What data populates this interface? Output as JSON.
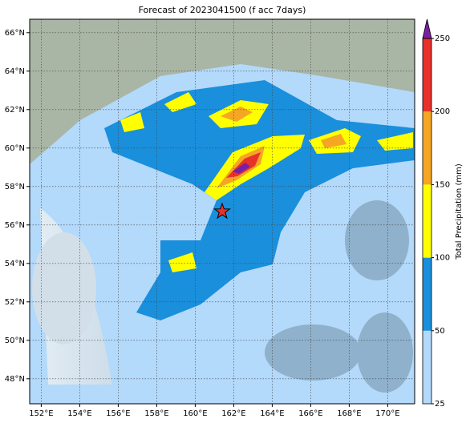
{
  "chart_data": {
    "type": "map",
    "title": "Forecast of 2023041500 (f acc 7days)",
    "xlim": [
      151.4,
      171.4
    ],
    "ylim": [
      46.7,
      66.7
    ],
    "xticks": [
      {
        "value": 152,
        "label": "152°E"
      },
      {
        "value": 154,
        "label": "154°E"
      },
      {
        "value": 156,
        "label": "156°E"
      },
      {
        "value": 158,
        "label": "158°E"
      },
      {
        "value": 160,
        "label": "160°E"
      },
      {
        "value": 162,
        "label": "162°E"
      },
      {
        "value": 164,
        "label": "164°E"
      },
      {
        "value": 166,
        "label": "166°E"
      },
      {
        "value": 168,
        "label": "168°E"
      },
      {
        "value": 170,
        "label": "170°E"
      }
    ],
    "yticks": [
      {
        "value": 48,
        "label": "48°N"
      },
      {
        "value": 50,
        "label": "50°N"
      },
      {
        "value": 52,
        "label": "52°N"
      },
      {
        "value": 54,
        "label": "54°N"
      },
      {
        "value": 56,
        "label": "56°N"
      },
      {
        "value": 58,
        "label": "58°N"
      },
      {
        "value": 60,
        "label": "60°N"
      },
      {
        "value": 62,
        "label": "62°N"
      },
      {
        "value": 64,
        "label": "64°N"
      },
      {
        "value": 66,
        "label": "66°N"
      }
    ],
    "grid": true,
    "marker": {
      "lon": 161.4,
      "lat": 56.7,
      "color": "#e8312a"
    },
    "colorbar": {
      "label": "Total Precipitation (mm)",
      "levels": [
        25,
        50,
        100,
        150,
        200,
        250
      ],
      "colors": [
        "#b3d9fb",
        "#1a8fdc",
        "#ffff00",
        "#f5a623",
        "#e8312a"
      ],
      "extend_color": "#7b1fa2"
    }
  }
}
